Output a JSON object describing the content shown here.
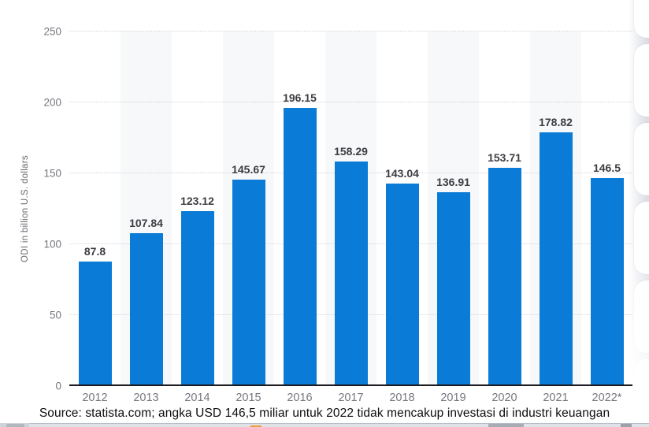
{
  "chart_data": {
    "type": "bar",
    "title": "",
    "categories": [
      "2012",
      "2013",
      "2014",
      "2015",
      "2016",
      "2017",
      "2018",
      "2019",
      "2020",
      "2021",
      "2022*"
    ],
    "values": [
      87.8,
      107.84,
      123.12,
      145.67,
      196.15,
      158.29,
      143.04,
      136.91,
      153.71,
      178.82,
      146.5
    ],
    "value_labels": [
      "87.8",
      "107.84",
      "123.12",
      "145.67",
      "196.15",
      "158.29",
      "143.04",
      "136.91",
      "153.71",
      "178.82",
      "146.5"
    ],
    "xlabel": "",
    "ylabel": "ODI in billion U.S. dollars",
    "ylim": [
      0,
      250
    ],
    "yticks": [
      0,
      50,
      100,
      150,
      200,
      250
    ],
    "grid": "horizontal-dotted",
    "legend": null,
    "bar_color": "#0a7bd6",
    "alternating_column_shading": true
  },
  "caption": {
    "text": "Source: statista.com; angka USD 146,5 miliar untuk 2022 tidak mencakup investasi di industri keuangan"
  }
}
